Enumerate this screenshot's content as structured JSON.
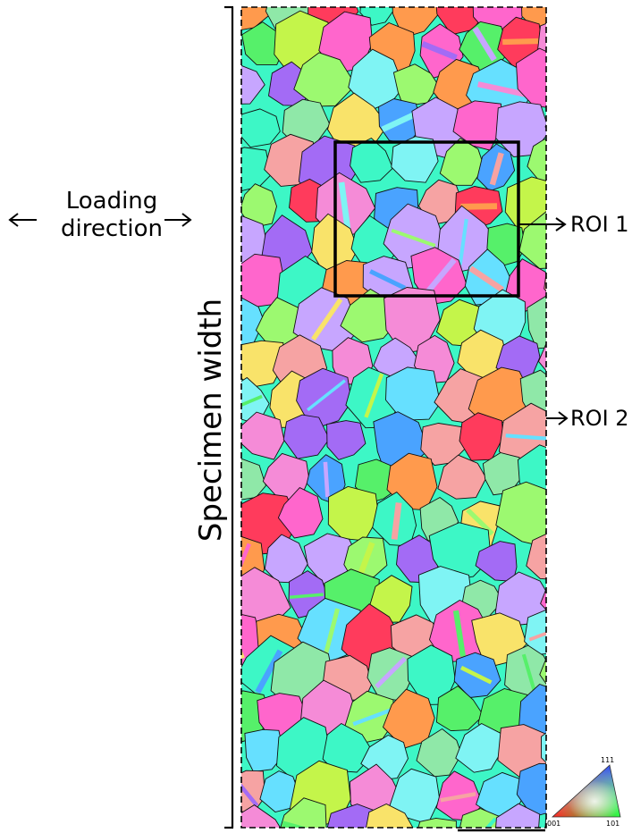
{
  "labels": {
    "loading_line1": "Loading",
    "loading_line2": "direction",
    "specimen_width": "Specimen width",
    "roi1": "ROI 1",
    "roi2": "ROI 2"
  },
  "legend": {
    "corner_111": "111",
    "corner_001": "001",
    "corner_101": "101"
  },
  "grain_palette": [
    "#3df7c6",
    "#9cf970",
    "#f58bd7",
    "#a36bf5",
    "#7ff4f4",
    "#f9e36a",
    "#ff3b5c",
    "#56f06a",
    "#f6a3a3",
    "#4aa3ff",
    "#c7a6ff",
    "#c4f54a",
    "#ff9a4d",
    "#66e0ff",
    "#ff66cc",
    "#8fe8a8"
  ],
  "colors": {
    "grain_boundary": "#111111",
    "frame": "#000000"
  }
}
